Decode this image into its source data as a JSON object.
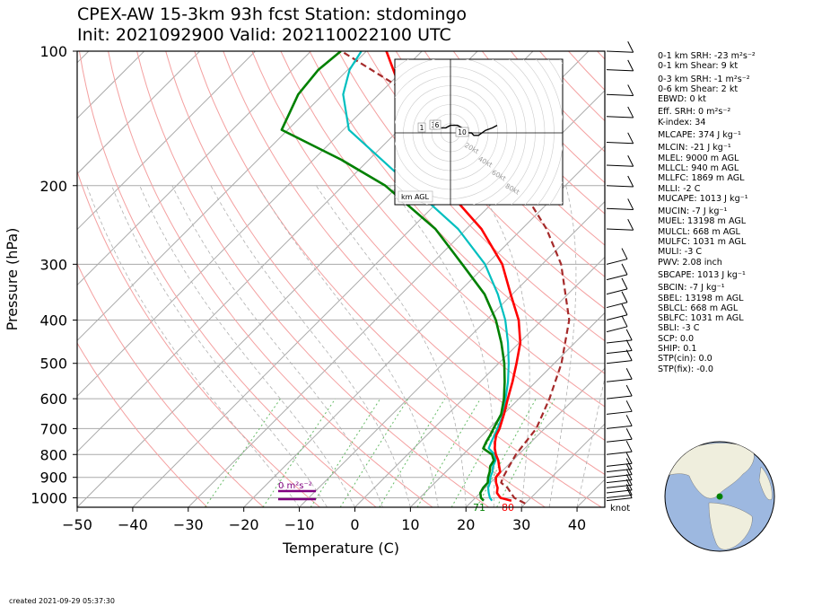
{
  "title_line1": "CPEX-AW 15-3km  93h fcst  Station: stdomingo",
  "title_line2": "Init: 2021092900  Valid: 2021100221​00 UTC",
  "created": "created 2021-09-29 05:37:30",
  "stats": [
    {
      "text": "0-1 km SRH: -23 m²s⁻²",
      "gap": false
    },
    {
      "text": "0-1 km Shear: 9 kt",
      "gap": false
    },
    {
      "text": "0-3 km SRH: -1 m²s⁻²",
      "gap": true
    },
    {
      "text": "0-6 km Shear: 2 kt",
      "gap": false
    },
    {
      "text": "EBWD: 0 kt",
      "gap": false
    },
    {
      "text": "Eff. SRH: 0 m²s⁻²",
      "gap": true
    },
    {
      "text": "K-index: 34",
      "gap": false
    },
    {
      "text": "MLCAPE: 374 J kg⁻¹",
      "gap": true
    },
    {
      "text": "MLCIN: -21 J kg⁻¹",
      "gap": true
    },
    {
      "text": "MLEL: 9000 m AGL",
      "gap": false
    },
    {
      "text": "MLLCL: 940 m AGL",
      "gap": false
    },
    {
      "text": "MLLFC: 1869 m AGL",
      "gap": false
    },
    {
      "text": "MLLI: -2 C",
      "gap": false
    },
    {
      "text": "MUCAPE: 1013 J kg⁻¹",
      "gap": false
    },
    {
      "text": "MUCIN: -7 J kg⁻¹",
      "gap": true
    },
    {
      "text": "MUEL: 13198 m AGL",
      "gap": false
    },
    {
      "text": "MULCL: 668 m AGL",
      "gap": false
    },
    {
      "text": "MULFC: 1031 m AGL",
      "gap": false
    },
    {
      "text": "MULI: -3 C",
      "gap": false
    },
    {
      "text": "PWV: 2.08 inch",
      "gap": false
    },
    {
      "text": "SBCAPE: 1013 J kg⁻¹",
      "gap": true
    },
    {
      "text": "SBCIN: -7 J kg⁻¹",
      "gap": true
    },
    {
      "text": "SBEL: 13198 m AGL",
      "gap": false
    },
    {
      "text": "SBLCL: 668 m AGL",
      "gap": false
    },
    {
      "text": "SBLFC: 1031 m AGL",
      "gap": false
    },
    {
      "text": "SBLI: -3 C",
      "gap": false
    },
    {
      "text": "SCP: 0.0",
      "gap": false
    },
    {
      "text": "SHIP: 0.1",
      "gap": false
    },
    {
      "text": "STP(cin): 0.0",
      "gap": false
    },
    {
      "text": "STP(fix): -0.0",
      "gap": false
    }
  ],
  "colors": {
    "temperature": "#ff0000",
    "dewpoint": "#008000",
    "wetbulb": "#00bfbf",
    "parcel": "#a52a2a",
    "isobar": "#aaaaaa",
    "isotherm": "#aaaaaa",
    "dry_adiabat": "#f4a0a0",
    "moist_adiabat": "#b0b0b0",
    "mixing_ratio": "#66bb66",
    "srh_bar": "#800080"
  },
  "chart_data": {
    "type": "line",
    "subtype": "skew-T log-P diagram",
    "xlabel": "Temperature (C)",
    "ylabel": "Pressure (hPa)",
    "xlim": [
      -50,
      45
    ],
    "ylim": [
      1050,
      100
    ],
    "yscale": "log",
    "x_ticks": [
      -50,
      -40,
      -30,
      -20,
      -10,
      0,
      10,
      20,
      30,
      40
    ],
    "x_tick_labels": [
      "−50",
      "−40",
      "−30",
      "−20",
      "−10",
      "0",
      "10",
      "20",
      "30",
      "40"
    ],
    "y_ticks": [
      100,
      200,
      300,
      400,
      500,
      600,
      700,
      800,
      900,
      1000
    ],
    "grid": true,
    "series": [
      {
        "key": "temperature",
        "pressure": [
          1015,
          1000,
          975,
          950,
          925,
          900,
          875,
          850,
          825,
          800,
          775,
          750,
          725,
          700,
          650,
          600,
          550,
          500,
          450,
          400,
          350,
          300,
          250,
          200,
          150,
          125,
          100
        ],
        "values": [
          27,
          24.5,
          23,
          22.2,
          21,
          20,
          19.8,
          18.6,
          17.4,
          15.9,
          14.6,
          13.5,
          12.5,
          11.9,
          10.1,
          8,
          5.8,
          3.2,
          0.2,
          -4.2,
          -10.3,
          -17.2,
          -27.3,
          -42,
          -56.8,
          -65.7,
          -76.4
        ]
      },
      {
        "key": "dewpoint",
        "pressure": [
          1015,
          1000,
          975,
          950,
          925,
          900,
          875,
          850,
          825,
          800,
          775,
          750,
          725,
          700,
          650,
          600,
          550,
          500,
          450,
          400,
          350,
          300,
          250,
          200,
          175,
          150,
          125,
          110,
          100
        ],
        "values": [
          22,
          21,
          20,
          19.6,
          19.5,
          18.6,
          17.9,
          17,
          16.6,
          15.2,
          12.5,
          11.9,
          11.4,
          10.8,
          9.6,
          7.3,
          4.4,
          1,
          -3.2,
          -8.3,
          -15,
          -24.4,
          -35.6,
          -52.4,
          -65,
          -81.1,
          -84.5,
          -85.3,
          -84.6
        ]
      },
      {
        "key": "wetbulb",
        "pressure": [
          1015,
          1000,
          975,
          950,
          925,
          900,
          875,
          850,
          825,
          800,
          775,
          750,
          725,
          700,
          650,
          600,
          550,
          500,
          450,
          400,
          350,
          300,
          250,
          200,
          150,
          125,
          110,
          100
        ],
        "values": [
          23.5,
          22.6,
          21.5,
          20.5,
          19.9,
          19,
          18.4,
          17.5,
          16.9,
          15.7,
          13.5,
          12.8,
          12.2,
          11.5,
          10,
          7.6,
          5,
          1.8,
          -2,
          -6.6,
          -12.6,
          -20.3,
          -31.5,
          -47.9,
          -69,
          -76.4,
          -79.7,
          -80.9
        ]
      },
      {
        "key": "parcel",
        "pressure": [
          1030,
          1000,
          950,
          925,
          900,
          850,
          800,
          700,
          600,
          500,
          400,
          300,
          250,
          200,
          150,
          100
        ],
        "values": [
          30,
          27,
          24,
          21.9,
          21.3,
          20.4,
          19.5,
          18.5,
          15.5,
          11.3,
          4.9,
          -6.6,
          -15.6,
          -28.2,
          -47.6,
          -84.5
        ]
      }
    ],
    "surface_labels": {
      "dewpoint": "71",
      "temperature": "80"
    },
    "srh_annotation": "0 m²s⁻²",
    "wind_unit": "knot",
    "hodograph": {
      "ring_labels": [
        "20kt",
        "40kt",
        "60kt",
        "80kt"
      ],
      "points": [
        [
          -4,
          2
        ],
        [
          -2,
          2
        ],
        [
          0,
          3
        ],
        [
          3,
          3
        ],
        [
          5,
          2
        ],
        [
          6,
          1
        ],
        [
          8,
          0
        ],
        [
          9,
          0
        ],
        [
          10,
          -1
        ],
        [
          12,
          -1
        ],
        [
          15,
          1
        ],
        [
          18,
          2
        ],
        [
          20,
          3
        ]
      ],
      "height_labels": [
        "1",
        "3",
        "6",
        "10"
      ],
      "footer": "km AGL"
    },
    "map": {
      "marker_lat": 18.5,
      "marker_lon": -69.9
    }
  }
}
